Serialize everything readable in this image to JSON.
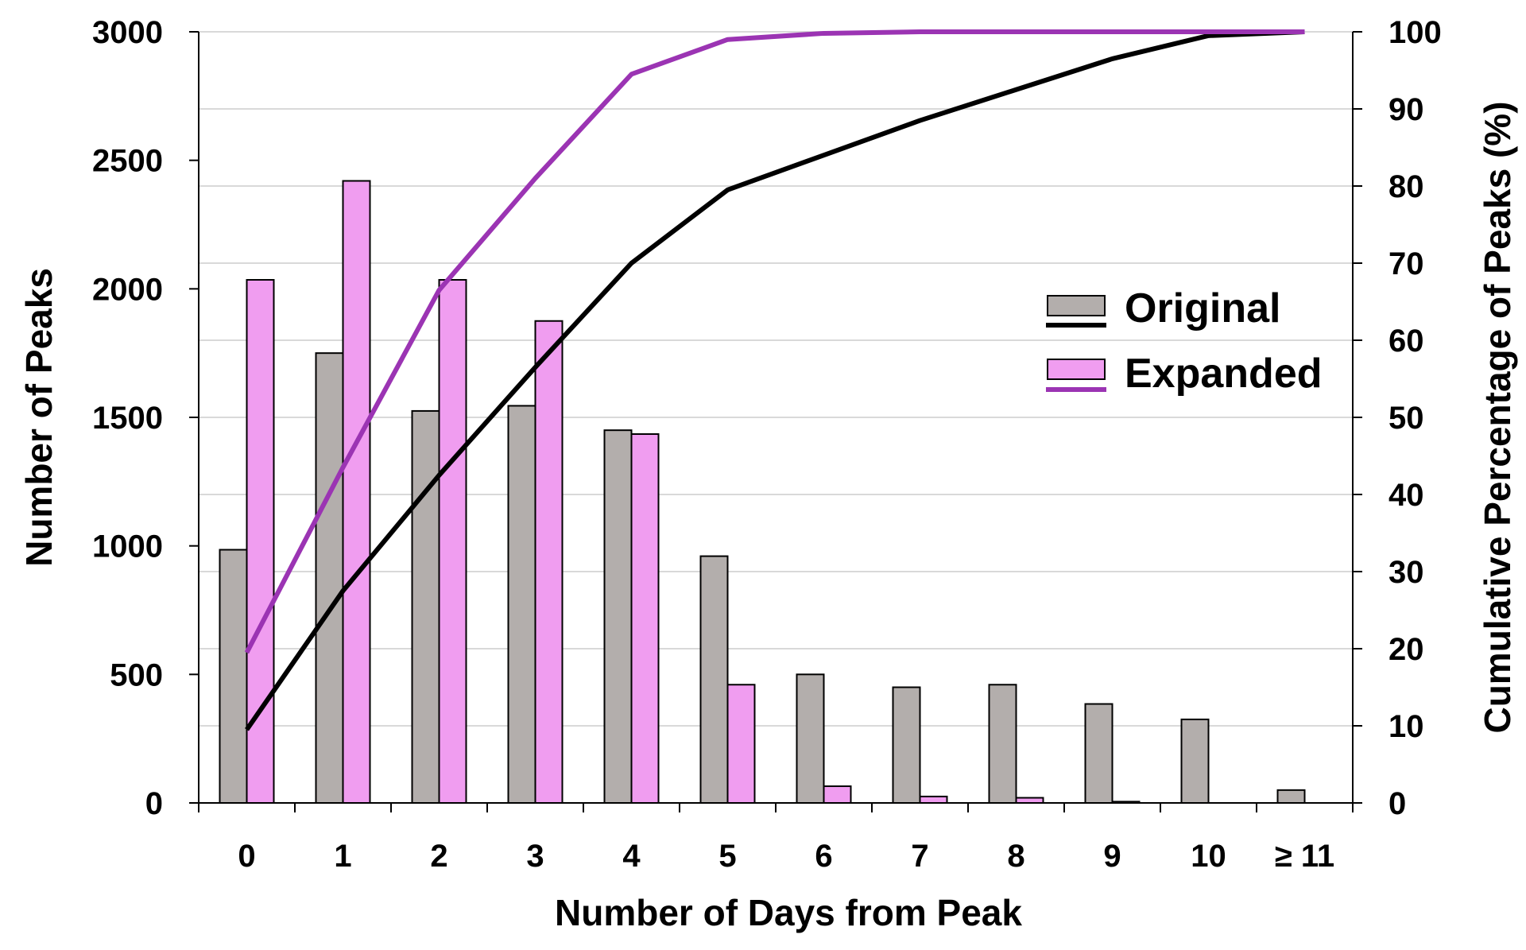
{
  "chart_data": {
    "type": "bar",
    "title": "",
    "xlabel": "Number of Days from Peak",
    "ylabel": "Number of Peaks",
    "y2label": "Cumulative Percentage of Peaks (%)",
    "categories": [
      "0",
      "1",
      "2",
      "3",
      "4",
      "5",
      "6",
      "7",
      "8",
      "9",
      "10",
      "≥ 11"
    ],
    "ylim": [
      0,
      3000
    ],
    "yticks": [
      "0",
      "500",
      "1000",
      "1500",
      "2000",
      "2500",
      "3000"
    ],
    "y2lim": [
      0,
      100
    ],
    "y2ticks": [
      "0",
      "10",
      "20",
      "30",
      "40",
      "50",
      "60",
      "70",
      "80",
      "90",
      "100"
    ],
    "grid": true,
    "legend_position": "center-right",
    "bar_series": [
      {
        "name": "Original",
        "color": "#b3aeac",
        "values": [
          985,
          1750,
          1525,
          1545,
          1450,
          960,
          500,
          450,
          460,
          385,
          325,
          50
        ]
      },
      {
        "name": "Expanded",
        "color": "#f09df0",
        "values": [
          2035,
          2420,
          2035,
          1875,
          1435,
          460,
          65,
          25,
          20,
          5,
          0,
          0
        ]
      }
    ],
    "line_series": [
      {
        "name": "Original",
        "color": "#000000",
        "values": [
          9.5,
          27.5,
          42.5,
          56.5,
          70,
          79.5,
          84,
          88.5,
          92.5,
          96.5,
          99.5,
          100
        ]
      },
      {
        "name": "Expanded",
        "color": "#9b34b3",
        "values": [
          19.5,
          43.5,
          66.5,
          81,
          94.5,
          99,
          99.8,
          100,
          100,
          100,
          100,
          100
        ]
      }
    ]
  }
}
